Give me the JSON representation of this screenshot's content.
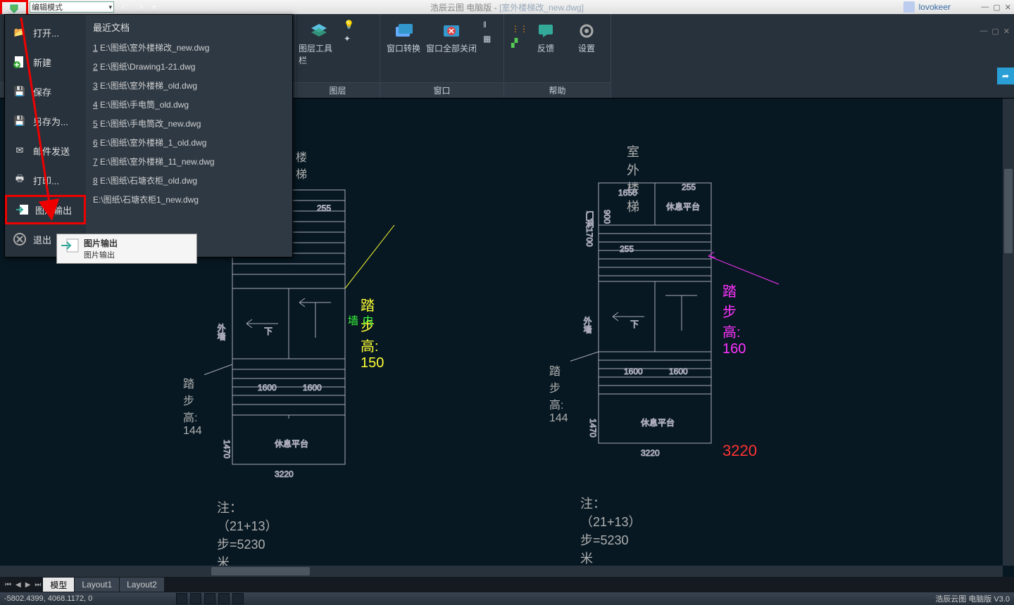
{
  "title_app": "浩辰云图 电脑版 - ",
  "title_doc": "[室外楼梯改_new.dwg]",
  "mode": "编辑模式",
  "user": "lovokeer",
  "ribbon_groups": [
    {
      "label": "图层",
      "big": [
        {
          "t": "",
          "id": "layers-icon"
        },
        {
          "t": "图层工具栏",
          "id": "layer-tools"
        }
      ],
      "small": []
    },
    {
      "label": "窗口",
      "big": [
        {
          "t": "窗口转换",
          "id": "win-switch"
        },
        {
          "t": "窗口全部关闭",
          "id": "win-closeall"
        }
      ],
      "small": [
        {
          "id": "s1"
        },
        {
          "id": "s2"
        }
      ]
    },
    {
      "label": "帮助",
      "big": [
        {
          "t": "反馈",
          "id": "feedback"
        },
        {
          "t": "设置",
          "id": "settings"
        }
      ],
      "small": [
        {
          "id": "h1"
        },
        {
          "id": "h2"
        }
      ]
    }
  ],
  "menu_items": [
    {
      "t": "打开...",
      "id": "open"
    },
    {
      "t": "新建",
      "id": "new"
    },
    {
      "t": "保存",
      "id": "save"
    },
    {
      "t": "另存为...",
      "id": "saveas"
    },
    {
      "t": "邮件发送",
      "id": "mail"
    },
    {
      "t": "打印...",
      "id": "print"
    },
    {
      "t": "图片输出",
      "id": "imgout",
      "hl": true
    },
    {
      "t": "退出",
      "id": "exit"
    }
  ],
  "recent_header": "最近文档",
  "recent": [
    "1 E:\\图纸\\室外楼梯改_new.dwg",
    "2 E:\\图纸\\Drawing1-21.dwg",
    "3 E:\\图纸\\室外楼梯_old.dwg",
    "4 E:\\图纸\\手电筒_old.dwg",
    "5 E:\\图纸\\手电筒改_new.dwg",
    "6 E:\\图纸\\室外楼梯_1_old.dwg",
    "7 E:\\图纸\\室外楼梯_11_new.dwg",
    "8 E:\\图纸\\石塘衣柜_old.dwg",
    "  E:\\图纸\\石塘衣柜1_new.dwg"
  ],
  "submenu": {
    "t1": "图片输出",
    "t2": "图片输出"
  },
  "drawing_left": {
    "title": "楼梯",
    "outer": "外墙",
    "inner": "内墙",
    "under": "下",
    "step_h": "踏步高: 150",
    "step_h2": "踏步高: 144",
    "platform": "休息平台",
    "w1": "1600",
    "w2": "1600",
    "wtot": "3220",
    "h": "255",
    "h2": "1470",
    "note": "注：（21+13）步=5230米"
  },
  "drawing_right": {
    "title": "室外楼梯",
    "outer": "外墙",
    "under": "下",
    "step_h": "踏步高: 160",
    "step_h2": "踏步高: 144",
    "platform": "休息平台",
    "platform2": "休息平台",
    "w1": "1600",
    "w2": "1600",
    "wtot": "3220",
    "wtot_red": "3220",
    "h": "255",
    "h2": "1470",
    "h3": "1650",
    "h4": "门洞1700",
    "h5": "900",
    "note": "注：（21+13）步=5230米"
  },
  "tabs": [
    "模型",
    "Layout1",
    "Layout2"
  ],
  "coords": "-5802.4399, 4068.1172, 0",
  "version": "浩辰云图 电脑版 V3.0",
  "colors": {
    "yellow": "#ffff33",
    "green": "#3cff3c",
    "magenta": "#ff33ff",
    "red": "#ff3333"
  }
}
